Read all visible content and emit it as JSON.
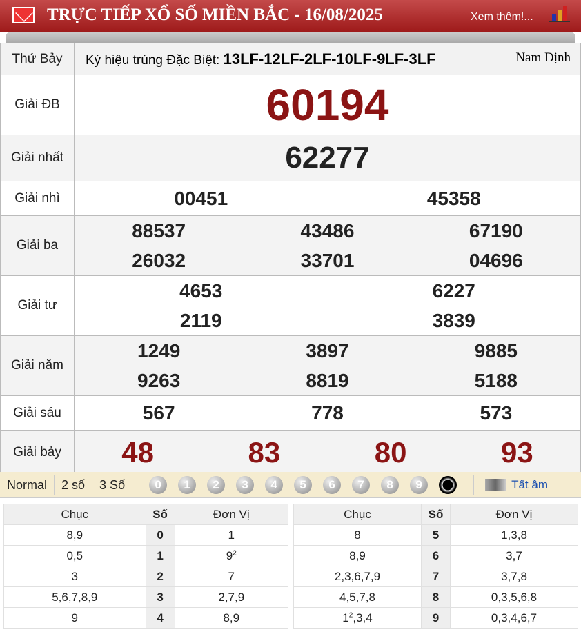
{
  "header": {
    "title": "TRỰC TIẾP XỔ SỐ MIỀN BẮC - 16/08/2025",
    "more": "Xem thêm!...",
    "icons": [
      "mail-icon",
      "bar-chart-icon"
    ]
  },
  "info": {
    "day": "Thứ Bảy",
    "code_label": "Ký hiệu trúng Đặc Biệt:",
    "code": "13LF-12LF-2LF-10LF-9LF-3LF",
    "province": "Nam Định"
  },
  "prizes": [
    {
      "label": "Giải ĐB",
      "numbers": [
        "60194"
      ]
    },
    {
      "label": "Giải nhất",
      "numbers": [
        "62277"
      ]
    },
    {
      "label": "Giải nhì",
      "numbers": [
        "00451",
        "45358"
      ]
    },
    {
      "label": "Giải ba",
      "numbers": [
        "88537",
        "43486",
        "67190",
        "26032",
        "33701",
        "04696"
      ]
    },
    {
      "label": "Giải tư",
      "numbers": [
        "4653",
        "6227",
        "2119",
        "3839"
      ]
    },
    {
      "label": "Giải năm",
      "numbers": [
        "1249",
        "3897",
        "9885",
        "9263",
        "8819",
        "5188"
      ]
    },
    {
      "label": "Giải sáu",
      "numbers": [
        "567",
        "778",
        "573"
      ]
    },
    {
      "label": "Giải bảy",
      "numbers": [
        "48",
        "83",
        "80",
        "93"
      ]
    }
  ],
  "toolbar": {
    "modes": [
      "Normal",
      "2 số",
      "3 Số"
    ],
    "digits": [
      "0",
      "1",
      "2",
      "3",
      "4",
      "5",
      "6",
      "7",
      "8",
      "9"
    ],
    "sound": "Tất âm"
  },
  "colors": {
    "header": "#a82222",
    "special": "#8b1414",
    "toolbar": "#f5ecd0"
  },
  "loto": {
    "headers": [
      "Chục",
      "Số",
      "Đơn Vị"
    ],
    "left": [
      {
        "chuc": "8,9",
        "so": "0",
        "dv": "1"
      },
      {
        "chuc": "0,5",
        "so": "1",
        "dv": "9",
        "dv_sup": "2"
      },
      {
        "chuc": "3",
        "so": "2",
        "dv": "7"
      },
      {
        "chuc": "5,6,7,8,9",
        "so": "3",
        "dv": "2,7,9"
      },
      {
        "chuc": "9",
        "so": "4",
        "dv": "8,9"
      }
    ],
    "right": [
      {
        "chuc": "8",
        "so": "5",
        "dv": "1,3,8"
      },
      {
        "chuc": "8,9",
        "so": "6",
        "dv": "3,7"
      },
      {
        "chuc": "2,3,6,7,9",
        "so": "7",
        "dv": "3,7,8"
      },
      {
        "chuc": "4,5,7,8",
        "so": "8",
        "dv": "0,3,5,6,8"
      },
      {
        "chuc": "1",
        "chuc_sup": "2",
        "chuc_rest": ",3,4",
        "so": "9",
        "dv": "0,3,4,6,7"
      }
    ]
  }
}
